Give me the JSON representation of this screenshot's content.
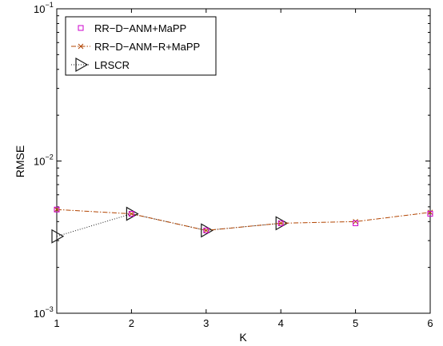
{
  "chart_data": {
    "type": "line",
    "xlabel": "K",
    "ylabel": "RMSE",
    "xlim": [
      1,
      6
    ],
    "ylim": [
      0.001,
      0.1
    ],
    "yscale": "log",
    "grid": false,
    "legend_position": "top-left",
    "x": [
      1,
      2,
      3,
      4,
      5,
      6
    ],
    "x_ticks": [
      "1",
      "2",
      "3",
      "4",
      "5",
      "6"
    ],
    "y_ticks": [
      {
        "value": 0.001,
        "base": "10",
        "exp": "−3"
      },
      {
        "value": 0.01,
        "base": "10",
        "exp": "−2"
      },
      {
        "value": 0.1,
        "base": "10",
        "exp": "−1"
      }
    ],
    "series": [
      {
        "name": "RR−D−ANM+MaPP",
        "values": [
          0.0048,
          0.0045,
          0.0035,
          0.0039,
          0.0039,
          0.0045
        ],
        "color": "#cc00cc",
        "line_style": "none",
        "marker": "square"
      },
      {
        "name": "RR−D−ANM−R+MaPP",
        "values": [
          0.0048,
          0.0045,
          0.0035,
          0.0039,
          0.004,
          0.0046
        ],
        "color": "#b24400",
        "line_style": "dashdot",
        "marker": "x"
      },
      {
        "name": "LRSCR",
        "values": [
          0.0032,
          0.0045,
          0.0035,
          0.0039,
          null,
          null
        ],
        "color": "#1a1a1a",
        "line_style": "dotted",
        "marker": "triangle-right"
      }
    ]
  }
}
